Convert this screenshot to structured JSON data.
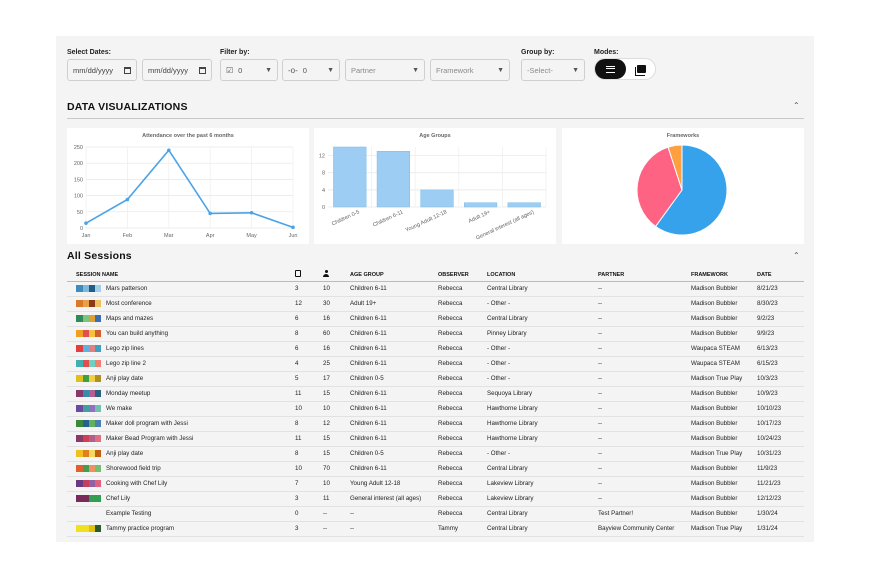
{
  "filters": {
    "select_dates_label": "Select Dates:",
    "date_start_placeholder": "mm/dd/yyyy",
    "date_end_placeholder": "mm/dd/yyyy",
    "filter_by_label": "Filter by:",
    "filter_count_1": "0",
    "filter_count_2": "0",
    "partner_placeholder": "Partner",
    "framework_placeholder": "Framework",
    "group_by_label": "Group by:",
    "group_by_placeholder": "-Select-",
    "modes_label": "Modes:"
  },
  "data_viz": {
    "title": "DATA VISUALIZATIONS"
  },
  "chart_data": [
    {
      "type": "line",
      "title": "Attendance over the past 6 months",
      "x": [
        "Jan",
        "Feb",
        "Mar",
        "Apr",
        "May",
        "Jun"
      ],
      "values": [
        15,
        88,
        240,
        45,
        47,
        2
      ],
      "ylim": [
        0,
        250
      ],
      "yticks": [
        "250",
        "200",
        "150",
        "100",
        "50",
        "0"
      ],
      "color": "#4aa3e8",
      "grid": true
    },
    {
      "type": "bar",
      "title": "Age Groups",
      "categories": [
        "Children 0-5",
        "Children 6-11",
        "Young Adult 12-18",
        "Adult 19+",
        "General interest (all ages)"
      ],
      "values": [
        14,
        13,
        4,
        1,
        1
      ],
      "ylim": [
        0,
        14
      ],
      "yticks": [
        "12",
        "8",
        "4",
        "0"
      ],
      "color": "#9dcdf2",
      "grid": true
    },
    {
      "type": "pie",
      "title": "Frameworks",
      "values": [
        60,
        35,
        5
      ],
      "colors": [
        "#36a2eb",
        "#ff6384",
        "#ffa040"
      ]
    }
  ],
  "sessions": {
    "title": "All Sessions",
    "headers": {
      "name": "SESSION NAME",
      "age_group": "AGE GROUP",
      "observer": "OBSERVER",
      "location": "LOCATION",
      "partner": "PARTNER",
      "framework": "FRAMEWORK",
      "date": "DATE"
    },
    "header_icons": [
      "search-doc-icon",
      "person-icon"
    ],
    "rows": [
      {
        "swatch": [
          "#3c8dbc",
          "#7fb8d8",
          "#1f5f87",
          "#a0d0e8"
        ],
        "name": "Mars patterson",
        "n1": "3",
        "n2": "10",
        "age": "Children 6-11",
        "observer": "Rebecca",
        "location": "Central Library",
        "partner": "--",
        "framework": "Madison Bubbler",
        "date": "8/21/23"
      },
      {
        "swatch": [
          "#d97a2a",
          "#e8a04a",
          "#8a3a1a",
          "#f0c060"
        ],
        "name": "Most conference",
        "n1": "12",
        "n2": "30",
        "age": "Adult 19+",
        "observer": "Rebecca",
        "location": "- Other -",
        "partner": "--",
        "framework": "Madison Bubbler",
        "date": "8/30/23"
      },
      {
        "swatch": [
          "#2e8b57",
          "#7cc47c",
          "#e0a030",
          "#3a6fb0"
        ],
        "name": "Maps and mazes",
        "n1": "6",
        "n2": "16",
        "age": "Children 6-11",
        "observer": "Rebecca",
        "location": "Central Library",
        "partner": "--",
        "framework": "Madison Bubbler",
        "date": "9/2/23"
      },
      {
        "swatch": [
          "#f0a020",
          "#e05050",
          "#f6c040",
          "#d06030"
        ],
        "name": "You can build anything",
        "n1": "8",
        "n2": "60",
        "age": "Children 6-11",
        "observer": "Rebecca",
        "location": "Pinney Library",
        "partner": "--",
        "framework": "Madison Bubbler",
        "date": "9/9/23"
      },
      {
        "swatch": [
          "#e04040",
          "#60b0e0",
          "#e08080",
          "#40a0c0"
        ],
        "name": "Lego zip lines",
        "n1": "6",
        "n2": "16",
        "age": "Children 6-11",
        "observer": "Rebecca",
        "location": "- Other -",
        "partner": "--",
        "framework": "Waupaca STEAM",
        "date": "6/13/23"
      },
      {
        "swatch": [
          "#40b0b0",
          "#e05050",
          "#70d0c0",
          "#f08070"
        ],
        "name": "Lego zip line 2",
        "n1": "4",
        "n2": "25",
        "age": "Children 6-11",
        "observer": "Rebecca",
        "location": "- Other -",
        "partner": "--",
        "framework": "Waupaca STEAM",
        "date": "6/15/23"
      },
      {
        "swatch": [
          "#e0c020",
          "#40a040",
          "#f0d040",
          "#b09020"
        ],
        "name": "Anji play date",
        "n1": "5",
        "n2": "17",
        "age": "Children 0-5",
        "observer": "Rebecca",
        "location": "- Other -",
        "partner": "--",
        "framework": "Madison True Play",
        "date": "10/3/23"
      },
      {
        "swatch": [
          "#8a3a6a",
          "#3a8ab0",
          "#b06090",
          "#2a6080"
        ],
        "name": "Monday meetup",
        "n1": "11",
        "n2": "15",
        "age": "Children 6-11",
        "observer": "Rebecca",
        "location": "Sequoya Library",
        "partner": "--",
        "framework": "Madison Bubbler",
        "date": "10/9/23"
      },
      {
        "swatch": [
          "#6a4aa0",
          "#40a0a0",
          "#9070c0",
          "#70c0b0"
        ],
        "name": "We make",
        "n1": "10",
        "n2": "10",
        "age": "Children 6-11",
        "observer": "Rebecca",
        "location": "Hawthorne Library",
        "partner": "--",
        "framework": "Madison Bubbler",
        "date": "10/10/23"
      },
      {
        "swatch": [
          "#3a8a3a",
          "#2a6090",
          "#60b060",
          "#4a80b0"
        ],
        "name": "Maker doll program with Jessi",
        "n1": "8",
        "n2": "12",
        "age": "Children 6-11",
        "observer": "Rebecca",
        "location": "Hawthorne Library",
        "partner": "--",
        "framework": "Madison Bubbler",
        "date": "10/17/23"
      },
      {
        "swatch": [
          "#8a3a6a",
          "#d04050",
          "#b0608a",
          "#e07080"
        ],
        "name": "Maker Bead Program with Jessi",
        "n1": "11",
        "n2": "15",
        "age": "Children 6-11",
        "observer": "Rebecca",
        "location": "Hawthorne Library",
        "partner": "--",
        "framework": "Madison Bubbler",
        "date": "10/24/23"
      },
      {
        "swatch": [
          "#f0c020",
          "#e08020",
          "#f6d860",
          "#c06010"
        ],
        "name": "Anji play date",
        "n1": "8",
        "n2": "15",
        "age": "Children 0-5",
        "observer": "Rebecca",
        "location": "- Other -",
        "partner": "--",
        "framework": "Madison True Play",
        "date": "10/31/23"
      },
      {
        "swatch": [
          "#e06030",
          "#40a050",
          "#f09060",
          "#70c070"
        ],
        "name": "Shorewood field trip",
        "n1": "10",
        "n2": "70",
        "age": "Children 6-11",
        "observer": "Rebecca",
        "location": "Central Library",
        "partner": "--",
        "framework": "Madison Bubbler",
        "date": "11/9/23"
      },
      {
        "swatch": [
          "#6a3a80",
          "#c04060",
          "#9060a0",
          "#e06080"
        ],
        "name": "Cooking with Chef Lily",
        "n1": "7",
        "n2": "10",
        "age": "Young Adult 12-18",
        "observer": "Rebecca",
        "location": "Lakeview Library",
        "partner": "--",
        "framework": "Madison Bubbler",
        "date": "11/21/23"
      },
      {
        "swatch": [
          "#7a2a5a",
          "#7a2a5a",
          "#30a050",
          "#30a050"
        ],
        "name": "Chef Lily",
        "n1": "3",
        "n2": "11",
        "age": "General interest (all ages)",
        "observer": "Rebecca",
        "location": "Lakeview Library",
        "partner": "--",
        "framework": "Madison Bubbler",
        "date": "12/12/23"
      },
      {
        "swatch": [],
        "name": "Example Testing",
        "n1": "0",
        "n2": "--",
        "age": "--",
        "observer": "Rebecca",
        "location": "Central Library",
        "partner": "Test Partner!",
        "framework": "Madison Bubbler",
        "date": "1/30/24"
      },
      {
        "swatch": [
          "#f0e020",
          "#f0e020",
          "#e0c010",
          "#2a5a2a"
        ],
        "name": "Tammy practice program",
        "n1": "3",
        "n2": "--",
        "age": "--",
        "observer": "Tammy",
        "location": "Central Library",
        "partner": "Bayview Community Center",
        "framework": "Madison True Play",
        "date": "1/31/24"
      }
    ]
  }
}
